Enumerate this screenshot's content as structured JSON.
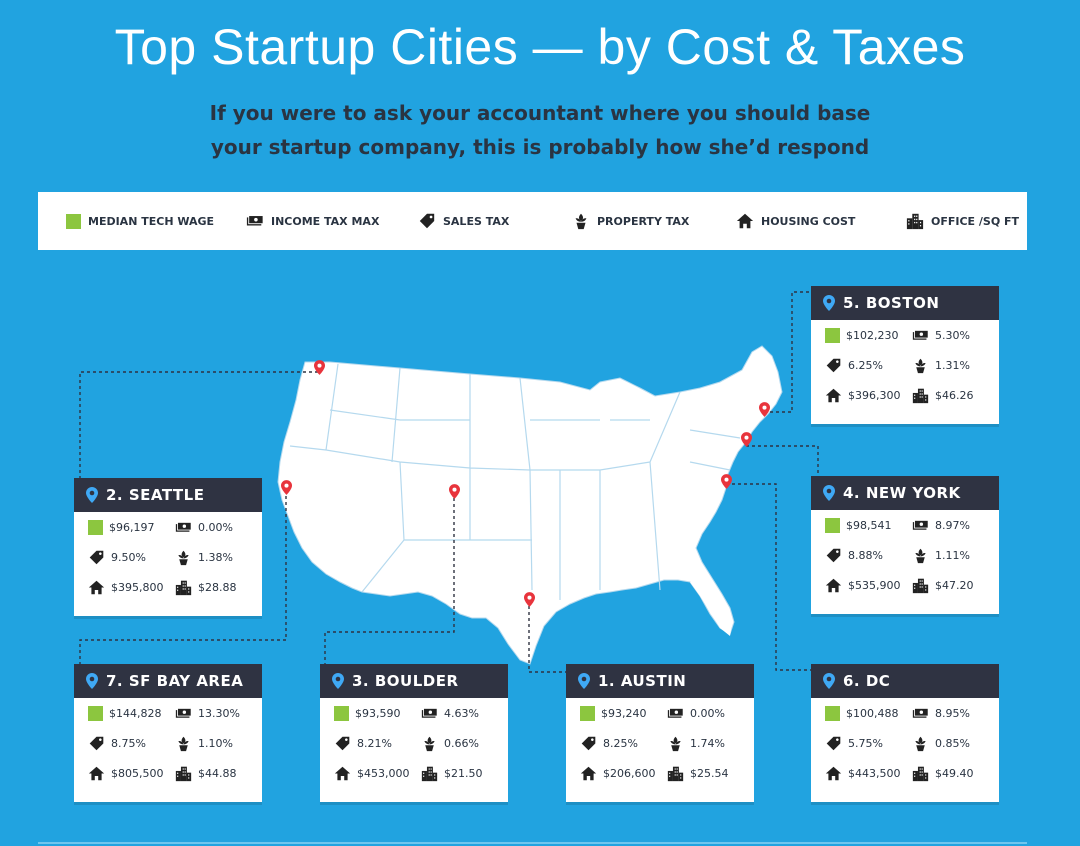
{
  "header": {
    "title": "Top Startup Cities — by Cost & Taxes",
    "subtitle": "If you were to ask your accountant where you should base your startup company, this is probably how she’d respond"
  },
  "legend": [
    {
      "icon": "wage-square-icon",
      "label": "MEDIAN TECH WAGE"
    },
    {
      "icon": "money-stack-icon",
      "label": "INCOME TAX MAX"
    },
    {
      "icon": "price-tag-icon",
      "label": "SALES TAX"
    },
    {
      "icon": "plant-pot-icon",
      "label": "PROPERTY TAX"
    },
    {
      "icon": "house-icon",
      "label": "HOUSING COST"
    },
    {
      "icon": "office-building-icon",
      "label": "OFFICE /SQ FT"
    }
  ],
  "colors": {
    "background": "#21a3e0",
    "card_header": "#2f3342",
    "wage": "#8cc63f",
    "pin": "#e8343c",
    "pin_blue": "#3fa9f5"
  },
  "cities": {
    "seattle": {
      "name": "2. SEATTLE",
      "wage": "$96,197",
      "income_tax": "0.00%",
      "sales_tax": "9.50%",
      "property_tax": "1.38%",
      "housing": "$395,800",
      "office": "$28.88"
    },
    "sf": {
      "name": "7. SF BAY AREA",
      "wage": "$144,828",
      "income_tax": "13.30%",
      "sales_tax": "8.75%",
      "property_tax": "1.10%",
      "housing": "$805,500",
      "office": "$44.88"
    },
    "boulder": {
      "name": "3. BOULDER",
      "wage": "$93,590",
      "income_tax": "4.63%",
      "sales_tax": "8.21%",
      "property_tax": "0.66%",
      "housing": "$453,000",
      "office": "$21.50"
    },
    "austin": {
      "name": "1. AUSTIN",
      "wage": "$93,240",
      "income_tax": "0.00%",
      "sales_tax": "8.25%",
      "property_tax": "1.74%",
      "housing": "$206,600",
      "office": "$25.54"
    },
    "boston": {
      "name": "5. BOSTON",
      "wage": "$102,230",
      "income_tax": "5.30%",
      "sales_tax": "6.25%",
      "property_tax": "1.31%",
      "housing": "$396,300",
      "office": "$46.26"
    },
    "newyork": {
      "name": "4. NEW YORK",
      "wage": "$98,541",
      "income_tax": "8.97%",
      "sales_tax": "8.88%",
      "property_tax": "1.11%",
      "housing": "$535,900",
      "office": "$47.20"
    },
    "dc": {
      "name": "6. DC",
      "wage": "$100,488",
      "income_tax": "8.95%",
      "sales_tax": "5.75%",
      "property_tax": "0.85%",
      "housing": "$443,500",
      "office": "$49.40"
    }
  }
}
